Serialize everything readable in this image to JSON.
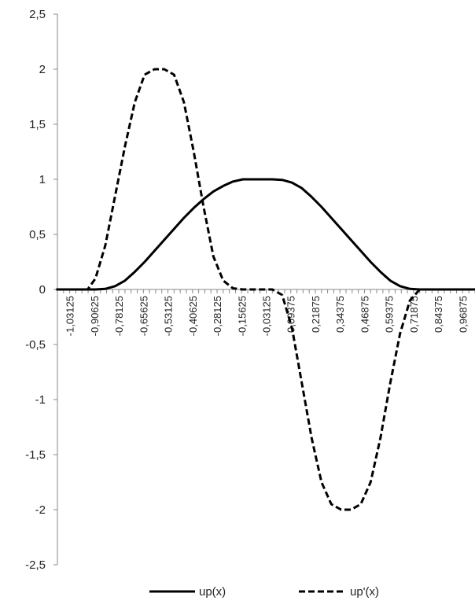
{
  "chart_data": {
    "type": "line",
    "title": "",
    "xlabel": "",
    "ylabel": "",
    "ylim": [
      -2.5,
      2.5
    ],
    "yticks": [
      2.5,
      2,
      1.5,
      1,
      0.5,
      0,
      -0.5,
      -1,
      -1.5,
      -2,
      -2.5
    ],
    "ytick_labels": [
      "2,5",
      "2",
      "1,5",
      "1",
      "0,5",
      "0",
      "-0,5",
      "-1",
      "-1,5",
      "-2",
      "-2,5"
    ],
    "xlim": [
      -1.09375,
      1.03125
    ],
    "x_labeled_ticks": [
      -1.03125,
      -0.90625,
      -0.78125,
      -0.65625,
      -0.53125,
      -0.40625,
      -0.28125,
      -0.15625,
      -0.03125,
      0.09375,
      0.21875,
      0.34375,
      0.46875,
      0.59375,
      0.71875,
      0.84375,
      0.96875
    ],
    "xtick_labels": [
      "-1,03125",
      "-0,90625",
      "-0,78125",
      "-0,65625",
      "-0,53125",
      "-0,40625",
      "-0,28125",
      "-0,15625",
      "-0,03125",
      "0,09375",
      "0,21875",
      "0,34375",
      "0,46875",
      "0,59375",
      "0,71875",
      "0,84375",
      "0,96875"
    ],
    "x_minor_step": 0.03125,
    "grid": false,
    "legend_position": "bottom",
    "series": [
      {
        "name": "up(x)",
        "style": "solid",
        "x": [
          -1.1,
          -1.0,
          -0.95,
          -0.9,
          -0.85,
          -0.8,
          -0.75,
          -0.7,
          -0.65,
          -0.6,
          -0.55,
          -0.5,
          -0.45,
          -0.4,
          -0.35,
          -0.3,
          -0.25,
          -0.2,
          -0.15,
          -0.1,
          -0.05,
          0,
          0.05,
          0.1,
          0.15,
          0.2,
          0.25,
          0.3,
          0.35,
          0.4,
          0.45,
          0.5,
          0.55,
          0.6,
          0.65,
          0.7,
          0.75,
          0.8,
          0.85,
          0.9,
          0.95,
          1.0,
          1.05
        ],
        "y": [
          0,
          0,
          0,
          0,
          0.005,
          0.03,
          0.08,
          0.16,
          0.25,
          0.35,
          0.45,
          0.55,
          0.65,
          0.74,
          0.82,
          0.89,
          0.94,
          0.98,
          1.0,
          1.0,
          1.0,
          1.0,
          0.995,
          0.97,
          0.92,
          0.84,
          0.75,
          0.65,
          0.55,
          0.45,
          0.35,
          0.25,
          0.16,
          0.08,
          0.03,
          0.005,
          0,
          0,
          0,
          0,
          0,
          0,
          0
        ]
      },
      {
        "name": "up'(x)",
        "style": "dashed",
        "x": [
          -1.1,
          -1.0,
          -0.94,
          -0.9,
          -0.85,
          -0.8,
          -0.75,
          -0.7,
          -0.65,
          -0.6,
          -0.55,
          -0.5,
          -0.45,
          -0.4,
          -0.35,
          -0.3,
          -0.25,
          -0.2,
          -0.15,
          -0.1,
          -0.06,
          0,
          0.05,
          0.1,
          0.15,
          0.2,
          0.25,
          0.3,
          0.35,
          0.4,
          0.45,
          0.5,
          0.55,
          0.6,
          0.65,
          0.7,
          0.75,
          0.8,
          0.85,
          0.9,
          0.94,
          1.0,
          1.05
        ],
        "y": [
          0,
          0,
          0,
          0.1,
          0.4,
          0.85,
          1.3,
          1.7,
          1.95,
          2.0,
          2.0,
          1.95,
          1.7,
          1.25,
          0.75,
          0.3,
          0.08,
          0.01,
          0,
          0,
          0,
          0,
          -0.05,
          -0.35,
          -0.85,
          -1.35,
          -1.75,
          -1.95,
          -2.0,
          -2.0,
          -1.95,
          -1.75,
          -1.35,
          -0.85,
          -0.4,
          -0.1,
          0,
          0,
          0,
          0,
          0,
          0,
          0
        ]
      }
    ]
  }
}
